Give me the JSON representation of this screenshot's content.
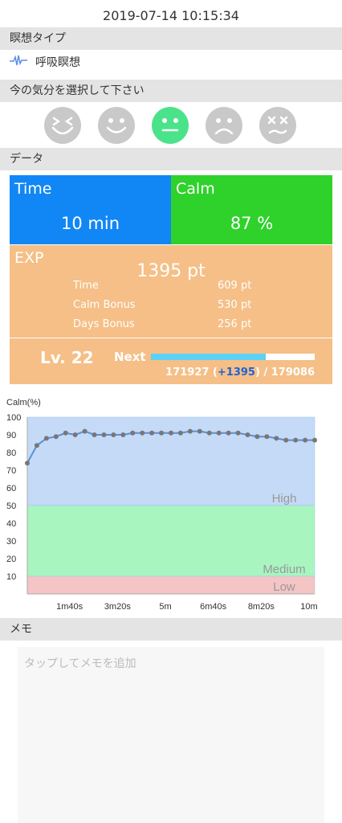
{
  "timestamp": "2019-07-14 10:15:34",
  "sections": {
    "meditation_type": "瞑想タイプ",
    "mood": "今の気分を選択して下さい",
    "data": "データ",
    "memo": "メモ"
  },
  "meditation": {
    "icon": "pulse-icon",
    "label": "呼吸瞑想"
  },
  "moods": [
    {
      "name": "mood-laughing",
      "selected": false
    },
    {
      "name": "mood-smile",
      "selected": false
    },
    {
      "name": "mood-neutral",
      "selected": true
    },
    {
      "name": "mood-sad",
      "selected": false
    },
    {
      "name": "mood-dizzy",
      "selected": false
    }
  ],
  "colors": {
    "time": "#1187f5",
    "calm": "#2fd12b",
    "exp": "#f5bf87",
    "selected_mood": "#4be38a",
    "progress": "#5cd1f5"
  },
  "stats": {
    "time_label": "Time",
    "time_value": "10 min",
    "calm_label": "Calm",
    "calm_value": "87 %"
  },
  "exp": {
    "label": "EXP",
    "total": "1395 pt",
    "rows": [
      {
        "label": "Time",
        "value": "609 pt"
      },
      {
        "label": "Calm Bonus",
        "value": "530 pt"
      },
      {
        "label": "Days Bonus",
        "value": "256 pt"
      }
    ]
  },
  "level": {
    "label": "Lv. 22",
    "next_label": "Next",
    "progress": 0.7,
    "current": "171927 (",
    "gain": "+1395",
    "target": ") / 179086"
  },
  "chart_data": {
    "type": "line",
    "ylabel": "Calm(%)",
    "ylim": [
      0,
      100
    ],
    "yticks": [
      10,
      20,
      30,
      40,
      50,
      60,
      70,
      80,
      90,
      100
    ],
    "xlim": [
      0,
      600
    ],
    "xticks": [
      {
        "v": 100,
        "label": "1m40s"
      },
      {
        "v": 200,
        "label": "3m20s"
      },
      {
        "v": 300,
        "label": "5m"
      },
      {
        "v": 400,
        "label": "6m40s"
      },
      {
        "v": 500,
        "label": "8m20s"
      },
      {
        "v": 600,
        "label": "10m"
      }
    ],
    "zones": [
      {
        "label": "High",
        "from": 50,
        "to": 100,
        "color": "#c4daf6"
      },
      {
        "label": "Medium",
        "from": 10,
        "to": 50,
        "color": "#a8f5c0"
      },
      {
        "label": "Low",
        "from": 0,
        "to": 10,
        "color": "#f5c4c4"
      }
    ],
    "series": [
      {
        "x": [
          0,
          20,
          40,
          60,
          80,
          100,
          120,
          140,
          160,
          180,
          200,
          220,
          240,
          260,
          280,
          300,
          320,
          340,
          360,
          380,
          400,
          420,
          440,
          460,
          480,
          500,
          520,
          540,
          560,
          580,
          600
        ],
        "values": [
          74,
          84,
          88,
          89,
          91,
          90,
          92,
          90,
          90,
          90,
          90,
          91,
          91,
          91,
          91,
          91,
          91,
          92,
          92,
          91,
          91,
          91,
          91,
          90,
          89,
          89,
          88,
          87,
          87,
          87,
          87
        ]
      }
    ]
  },
  "memo": {
    "placeholder": "タップしてメモを追加"
  }
}
